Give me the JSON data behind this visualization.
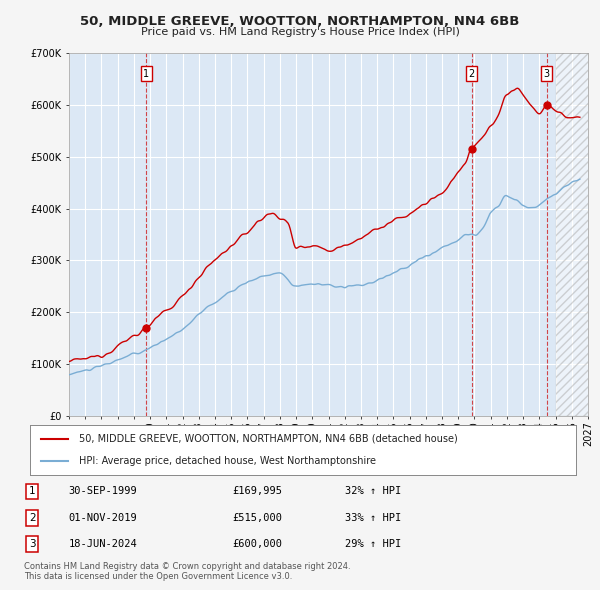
{
  "title_line1": "50, MIDDLE GREEVE, WOOTTON, NORTHAMPTON, NN4 6BB",
  "title_line2": "Price paid vs. HM Land Registry's House Price Index (HPI)",
  "plot_bg_color": "#dce8f5",
  "grid_color": "#ffffff",
  "red_color": "#cc0000",
  "blue_color": "#7aadd4",
  "legend_entries": [
    "50, MIDDLE GREEVE, WOOTTON, NORTHAMPTON, NN4 6BB (detached house)",
    "HPI: Average price, detached house, West Northamptonshire"
  ],
  "table_data": [
    {
      "num": "1",
      "date": "30-SEP-1999",
      "price": "£169,995",
      "change": "32% ↑ HPI"
    },
    {
      "num": "2",
      "date": "01-NOV-2019",
      "price": "£515,000",
      "change": "33% ↑ HPI"
    },
    {
      "num": "3",
      "date": "18-JUN-2024",
      "price": "£600,000",
      "change": "29% ↑ HPI"
    }
  ],
  "footer": "Contains HM Land Registry data © Crown copyright and database right 2024.\nThis data is licensed under the Open Government Licence v3.0.",
  "ylim": [
    0,
    700000
  ],
  "yticks": [
    0,
    100000,
    200000,
    300000,
    400000,
    500000,
    600000,
    700000
  ],
  "xlim_start": 1995.0,
  "xlim_end": 2027.0,
  "sale_dates": [
    1999.75,
    2019.833,
    2024.46
  ],
  "sale_prices": [
    169995,
    515000,
    600000
  ],
  "sale_labels": [
    "1",
    "2",
    "3"
  ],
  "hatch_start": 2025.0
}
